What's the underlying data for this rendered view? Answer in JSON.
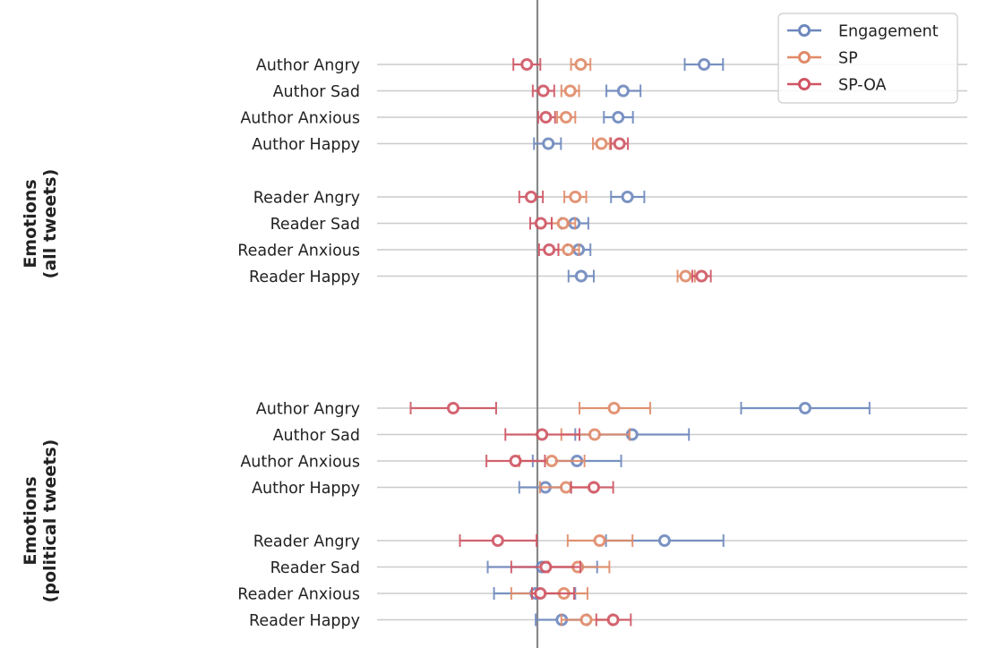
{
  "chart_data": {
    "type": "scatter",
    "subtype": "dot-and-errorbar",
    "title": "",
    "xlabel": "",
    "ylabel": "",
    "reference_line_x": 0,
    "xlim": [
      -0.385,
      1.0
    ],
    "legend_position": "top-right",
    "grid": "horizontal",
    "colors": {
      "Engagement": "#6d88bd",
      "SP": "#e08a68",
      "SP-OA": "#cf5563",
      "gridline": "#cccccc",
      "refline": "#888888"
    },
    "series": [
      {
        "name": "Engagement"
      },
      {
        "name": "SP"
      },
      {
        "name": "SP-OA"
      }
    ],
    "panels": [
      {
        "group_label": [
          "Emotions",
          "(all tweets)"
        ],
        "rows": [
          {
            "label": "Author Angry",
            "Engagement": [
              0.396,
              0.35,
              0.441
            ],
            "SP": [
              0.103,
              0.08,
              0.126
            ],
            "SP-OA": [
              -0.025,
              -0.057,
              0.007
            ]
          },
          {
            "label": "Author Sad",
            "Engagement": [
              0.204,
              0.164,
              0.245
            ],
            "SP": [
              0.078,
              0.057,
              0.099
            ],
            "SP-OA": [
              0.014,
              -0.011,
              0.04
            ]
          },
          {
            "label": "Author Anxious",
            "Engagement": [
              0.192,
              0.158,
              0.227
            ],
            "SP": [
              0.068,
              0.047,
              0.09
            ],
            "SP-OA": [
              0.02,
              0.002,
              0.042
            ]
          },
          {
            "label": "Author Happy",
            "Engagement": [
              0.026,
              -0.008,
              0.056
            ],
            "SP": [
              0.152,
              0.132,
              0.172
            ],
            "SP-OA": [
              0.195,
              0.175,
              0.215
            ]
          },
          {
            "label": "Reader Angry",
            "Engagement": [
              0.214,
              0.175,
              0.254
            ],
            "SP": [
              0.09,
              0.064,
              0.116
            ],
            "SP-OA": [
              -0.015,
              -0.043,
              0.013
            ]
          },
          {
            "label": "Reader Sad",
            "Engagement": [
              0.088,
              0.057,
              0.121
            ],
            "SP": [
              0.061,
              0.034,
              0.09
            ],
            "SP-OA": [
              0.008,
              -0.017,
              0.034
            ]
          },
          {
            "label": "Reader Anxious",
            "Engagement": [
              0.098,
              0.071,
              0.126
            ],
            "SP": [
              0.073,
              0.05,
              0.099
            ],
            "SP-OA": [
              0.028,
              0.004,
              0.05
            ]
          },
          {
            "label": "Reader Happy",
            "Engagement": [
              0.104,
              0.074,
              0.134
            ],
            "SP": [
              0.352,
              0.333,
              0.374
            ],
            "SP-OA": [
              0.39,
              0.368,
              0.412
            ]
          }
        ]
      },
      {
        "group_label": [
          "Emotions",
          "(political tweets)"
        ],
        "rows": [
          {
            "label": "Author Angry",
            "Engagement": [
              0.636,
              0.484,
              0.789
            ],
            "SP": [
              0.182,
              0.1,
              0.268
            ],
            "SP-OA": [
              -0.2,
              -0.301,
              -0.098
            ]
          },
          {
            "label": "Author Sad",
            "Engagement": [
              0.225,
              0.09,
              0.36
            ],
            "SP": [
              0.136,
              0.057,
              0.219
            ],
            "SP-OA": [
              0.011,
              -0.076,
              0.1
            ]
          },
          {
            "label": "Author Anxious",
            "Engagement": [
              0.094,
              -0.011,
              0.199
            ],
            "SP": [
              0.034,
              -0.043,
              0.112
            ],
            "SP-OA": [
              -0.052,
              -0.121,
              0.018
            ]
          },
          {
            "label": "Author Happy",
            "Engagement": [
              0.019,
              -0.043,
              0.08
            ],
            "SP": [
              0.068,
              0.006,
              0.133
            ],
            "SP-OA": [
              0.134,
              0.08,
              0.18
            ]
          },
          {
            "label": "Reader Angry",
            "Engagement": [
              0.302,
              0.163,
              0.442
            ],
            "SP": [
              0.148,
              0.072,
              0.226
            ],
            "SP-OA": [
              -0.094,
              -0.184,
              -0.002
            ]
          },
          {
            "label": "Reader Sad",
            "Engagement": [
              0.011,
              -0.118,
              0.142
            ],
            "SP": [
              0.096,
              0.026,
              0.171
            ],
            "SP-OA": [
              0.02,
              -0.062,
              0.102
            ]
          },
          {
            "label": "Reader Anxious",
            "Engagement": [
              -0.004,
              -0.103,
              0.09
            ],
            "SP": [
              0.063,
              -0.062,
              0.119
            ],
            "SP-OA": [
              0.007,
              -0.013,
              0.087
            ]
          },
          {
            "label": "Reader Happy",
            "Engagement": [
              0.058,
              -0.004,
              0.119
            ],
            "SP": [
              0.116,
              0.057,
              0.178
            ],
            "SP-OA": [
              0.18,
              0.14,
              0.222
            ]
          }
        ]
      }
    ]
  }
}
